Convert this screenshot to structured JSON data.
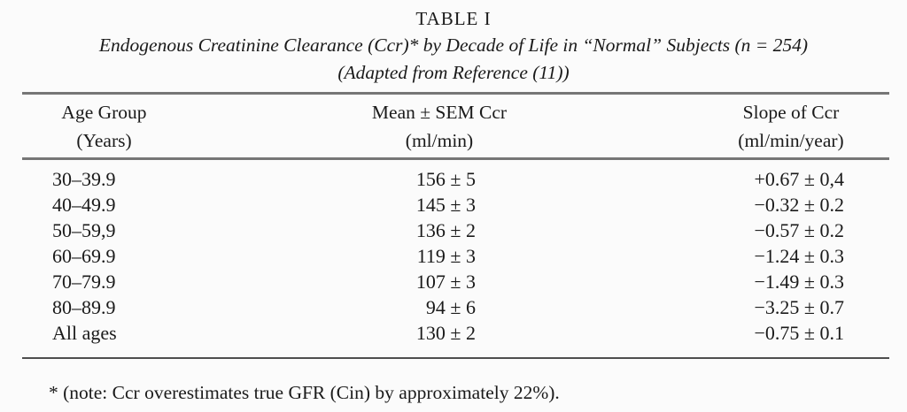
{
  "page": {
    "background_color": "#fbfbfb",
    "text_color": "#1a1a1a",
    "rule_color": "#767676"
  },
  "table": {
    "label": "TABLE I",
    "caption_line1": "Endogenous Creatinine Clearance (Ccr)* by Decade of Life in “Normal” Subjects (n = 254)",
    "caption_line2": "(Adapted from Reference (11))",
    "columns": [
      {
        "line1": "Age Group",
        "line2": "(Years)"
      },
      {
        "line1": "Mean ± SEM Ccr",
        "line2": "(ml/min)"
      },
      {
        "line1": "Slope of Ccr",
        "line2": "(ml/min/year)"
      }
    ],
    "rows": [
      {
        "age_group": "30–39.9",
        "mean_sem_ccr": "156 ± 5",
        "slope": "+0.67 ± 0,4"
      },
      {
        "age_group": "40–49.9",
        "mean_sem_ccr": "145 ± 3",
        "slope": "−0.32 ± 0.2"
      },
      {
        "age_group": "50–59,9",
        "mean_sem_ccr": "136 ± 2",
        "slope": "−0.57 ± 0.2"
      },
      {
        "age_group": "60–69.9",
        "mean_sem_ccr": "119 ± 3",
        "slope": "−1.24 ± 0.3"
      },
      {
        "age_group": "70–79.9",
        "mean_sem_ccr": "107 ± 3",
        "slope": "−1.49 ± 0.3"
      },
      {
        "age_group": "80–89.9",
        "mean_sem_ccr": "94 ± 6",
        "slope": "−3.25 ± 0.7"
      },
      {
        "age_group": "All ages",
        "mean_sem_ccr": "130 ± 2",
        "slope": "−0.75 ± 0.1"
      }
    ],
    "footnote": "* (note: Ccr overestimates true GFR (Cin) by approximately 22%)."
  },
  "chart_data": {
    "type": "table",
    "title": "TABLE I — Endogenous Creatinine Clearance (Ccr) by Decade of Life in “Normal” Subjects (n = 254), Adapted from Reference (11)",
    "columns": [
      "Age Group (Years)",
      "Mean ± SEM Ccr (ml/min)",
      "Slope of Ccr (ml/min/year)"
    ],
    "rows": [
      [
        "30–39.9",
        "156 ± 5",
        "+0.67 ± 0,4"
      ],
      [
        "40–49.9",
        "145 ± 3",
        "−0.32 ± 0.2"
      ],
      [
        "50–59,9",
        "136 ± 2",
        "−0.57 ± 0.2"
      ],
      [
        "60–69.9",
        "119 ± 3",
        "−1.24 ± 0.3"
      ],
      [
        "70–79.9",
        "107 ± 3",
        "−1.49 ± 0.3"
      ],
      [
        "80–89.9",
        "94 ± 6",
        "−3.25 ± 0.7"
      ],
      [
        "All ages",
        "130 ± 2",
        "−0.75 ± 0.1"
      ]
    ],
    "footnote": "* (note: Ccr overestimates true GFR (Cin) by approximately 22%)."
  }
}
